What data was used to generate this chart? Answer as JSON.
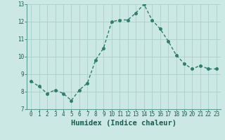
{
  "x": [
    0,
    1,
    2,
    3,
    4,
    5,
    6,
    7,
    8,
    9,
    10,
    11,
    12,
    13,
    14,
    15,
    16,
    17,
    18,
    19,
    20,
    21,
    22,
    23
  ],
  "y": [
    8.6,
    8.3,
    7.9,
    8.1,
    7.9,
    7.5,
    8.1,
    8.5,
    9.8,
    10.5,
    12.0,
    12.1,
    12.1,
    12.5,
    13.0,
    12.1,
    11.6,
    10.9,
    10.1,
    9.6,
    9.3,
    9.5,
    9.3,
    9.3
  ],
  "line_color": "#2e7d6e",
  "marker": "o",
  "markersize": 2.5,
  "linewidth": 1.0,
  "xlabel": "Humidex (Indice chaleur)",
  "ylim": [
    7,
    13
  ],
  "xlim": [
    -0.5,
    23.5
  ],
  "yticks": [
    7,
    8,
    9,
    10,
    11,
    12,
    13
  ],
  "xticks": [
    0,
    1,
    2,
    3,
    4,
    5,
    6,
    7,
    8,
    9,
    10,
    11,
    12,
    13,
    14,
    15,
    16,
    17,
    18,
    19,
    20,
    21,
    22,
    23
  ],
  "bg_color": "#cce8e4",
  "grid_color": "#aacfcc",
  "tick_labelsize": 5.5,
  "xlabel_fontsize": 7.5,
  "xlabel_fontweight": "bold"
}
